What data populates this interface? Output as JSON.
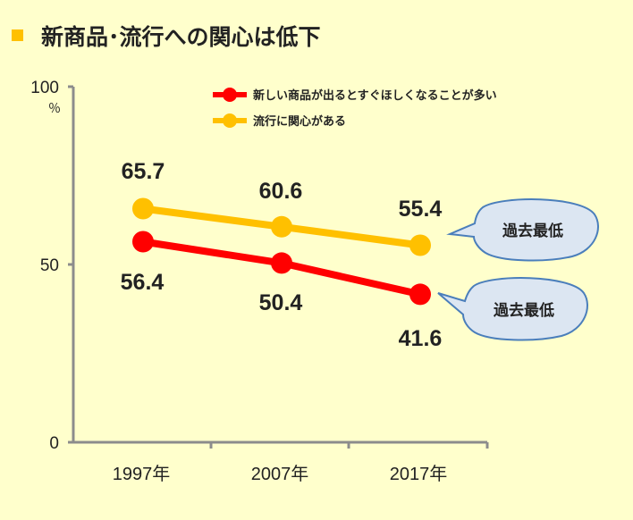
{
  "title": "新商品･流行への関心は低下",
  "title_marker_color": "#ffc000",
  "background_color": "#ffffcc",
  "chart_data": {
    "type": "line",
    "categories": [
      "1997年",
      "2007年",
      "2017年"
    ],
    "series": [
      {
        "name": "新しい商品が出るとすぐほしくなることが多い",
        "color": "#ff0000",
        "values": [
          56.4,
          50.4,
          41.6
        ]
      },
      {
        "name": "流行に関心がある",
        "color": "#ffc000",
        "values": [
          65.7,
          60.6,
          55.4
        ]
      }
    ],
    "ylim": [
      0,
      100
    ],
    "yticks": [
      "0",
      "50",
      "100"
    ],
    "yunit": "％",
    "data_labels": {
      "s0": [
        "56.4",
        "50.4",
        "41.6"
      ],
      "s1": [
        "65.7",
        "60.6",
        "55.4"
      ]
    },
    "annotations": [
      "過去最低",
      "過去最低"
    ],
    "legend_position": "top-right",
    "grid": false
  }
}
